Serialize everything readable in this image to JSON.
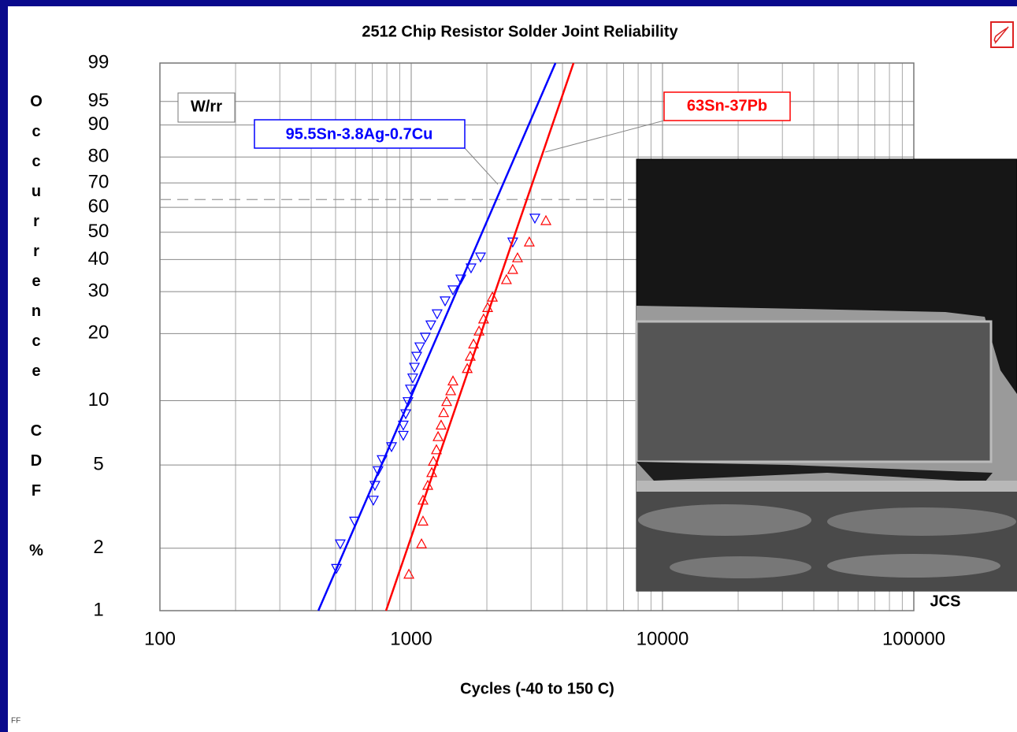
{
  "chart_data": {
    "type": "weibull",
    "title": "2512 Chip Resistor Solder Joint Reliability",
    "x_label": "Cycles (-40 to 150 C)",
    "y_label": "Occurrence CDF %",
    "xscale": "log",
    "yscale": "weibull",
    "xlim": [
      100,
      100000
    ],
    "xticks": [
      100,
      1000,
      10000,
      100000
    ],
    "ylim": [
      1,
      99
    ],
    "yticks": [
      1,
      2,
      5,
      10,
      20,
      30,
      40,
      50,
      60,
      70,
      80,
      90,
      95,
      99
    ],
    "grid": true,
    "reference_y": 63.2,
    "method_label": "W/rr",
    "credit": "JCS",
    "footer": "FF",
    "series": [
      {
        "name": "95.5Sn-3.8Ag-0.7Cu",
        "color": "#0000ff",
        "marker": "triangle-down",
        "x": [
          504,
          522,
          595,
          707,
          717,
          738,
          766,
          835,
          930,
          930,
          951,
          971,
          993,
          1014,
          1030,
          1052,
          1082,
          1138,
          1197,
          1268,
          1364,
          1466,
          1575,
          1730,
          1887,
          2535,
          3105
        ],
        "values": [
          1.6,
          2.1,
          2.7,
          3.4,
          4.0,
          4.7,
          5.3,
          6.1,
          6.9,
          7.7,
          8.7,
          9.9,
          11.3,
          12.7,
          14.2,
          15.9,
          17.5,
          19.3,
          21.8,
          24.3,
          27.5,
          30.5,
          33.7,
          37.2,
          40.9,
          46.3,
          55.6
        ],
        "fit_x": [
          427,
          3750
        ],
        "fit_values": [
          1,
          99
        ]
      },
      {
        "name": "63Sn-37Pb",
        "color": "#ff0000",
        "marker": "triangle-up",
        "x": [
          979,
          1099,
          1114,
          1114,
          1164,
          1207,
          1225,
          1260,
          1279,
          1315,
          1346,
          1384,
          1436,
          1466,
          1671,
          1718,
          1770,
          1862,
          1941,
          2014,
          2104,
          2393,
          2535,
          2649,
          2951,
          3436
        ],
        "values": [
          1.5,
          2.1,
          2.7,
          3.4,
          4.0,
          4.6,
          5.2,
          5.9,
          6.8,
          7.7,
          8.8,
          9.9,
          11.1,
          12.3,
          14.0,
          15.9,
          18.0,
          20.5,
          23.1,
          25.8,
          28.5,
          33.5,
          36.7,
          40.6,
          46.3,
          54.6
        ],
        "fit_x": [
          794,
          4425
        ],
        "fit_values": [
          1,
          99
        ]
      }
    ]
  }
}
